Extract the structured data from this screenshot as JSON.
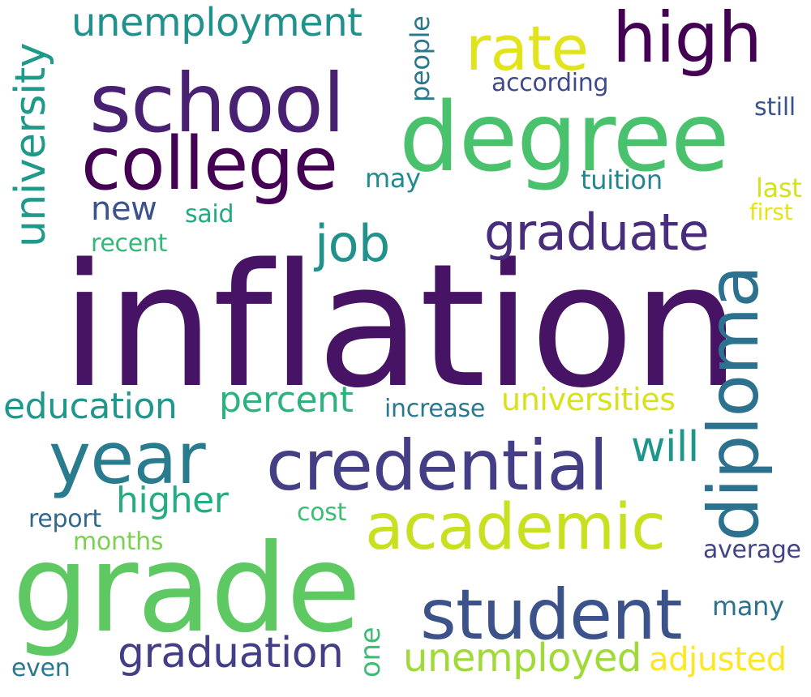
{
  "palette": {
    "deep_purple": "#440154",
    "indigo": "#482878",
    "violet": "#3e4a89",
    "blue": "#31688e",
    "teal_blue": "#26828e",
    "teal": "#1f9e89",
    "green": "#35b779",
    "light_green": "#6ece58",
    "lime": "#b5de2b",
    "yellow": "#fde725"
  },
  "words": [
    {
      "text": "inflation",
      "color": "#471365"
    },
    {
      "text": "grade",
      "color": "#5ec962"
    },
    {
      "text": "degree",
      "color": "#4ac16d"
    },
    {
      "text": "school",
      "color": "#482173"
    },
    {
      "text": "college",
      "color": "#440154"
    },
    {
      "text": "credential",
      "color": "#433e85"
    },
    {
      "text": "student",
      "color": "#3b528b"
    },
    {
      "text": "academic",
      "color": "#c8e020"
    },
    {
      "text": "diploma",
      "color": "#2c728e"
    },
    {
      "text": "year",
      "color": "#297b8e"
    },
    {
      "text": "high",
      "color": "#440154"
    },
    {
      "text": "rate",
      "color": "#e1e41d"
    },
    {
      "text": "graduate",
      "color": "#472d7b"
    },
    {
      "text": "graduation",
      "color": "#433e85"
    },
    {
      "text": "unemployed",
      "color": "#a0da39"
    },
    {
      "text": "unemployment",
      "color": "#21918c"
    },
    {
      "text": "university",
      "color": "#1f9a8a"
    },
    {
      "text": "job",
      "color": "#21918c"
    },
    {
      "text": "education",
      "color": "#1f988b"
    },
    {
      "text": "percent",
      "color": "#2db27d"
    },
    {
      "text": "universities",
      "color": "#d8e219"
    },
    {
      "text": "will",
      "color": "#1f968b"
    },
    {
      "text": "higher",
      "color": "#25ac82"
    },
    {
      "text": "adjusted",
      "color": "#fde725"
    },
    {
      "text": "people",
      "color": "#2a788e"
    },
    {
      "text": "according",
      "color": "#3e4a89"
    },
    {
      "text": "still",
      "color": "#3b528b"
    },
    {
      "text": "may",
      "color": "#228b8d"
    },
    {
      "text": "tuition",
      "color": "#25858e"
    },
    {
      "text": "new",
      "color": "#3b528b"
    },
    {
      "text": "said",
      "color": "#24aa83"
    },
    {
      "text": "recent",
      "color": "#35b779"
    },
    {
      "text": "last",
      "color": "#d2e21b"
    },
    {
      "text": "first",
      "color": "#e5e419"
    },
    {
      "text": "increase",
      "color": "#2a788e"
    },
    {
      "text": "report",
      "color": "#31688e"
    },
    {
      "text": "cost",
      "color": "#3dbc74"
    },
    {
      "text": "months",
      "color": "#7ad151"
    },
    {
      "text": "average",
      "color": "#414487"
    },
    {
      "text": "many",
      "color": "#2c728e"
    },
    {
      "text": "one",
      "color": "#3dbc74"
    },
    {
      "text": "even",
      "color": "#2a788e"
    }
  ]
}
